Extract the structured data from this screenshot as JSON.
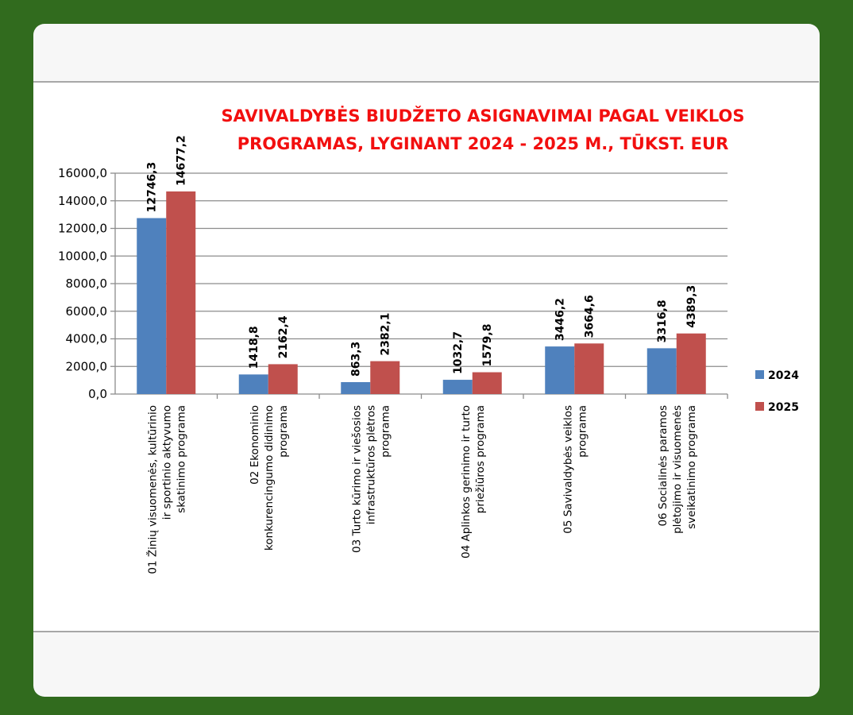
{
  "chart_data": {
    "type": "bar",
    "title_lines": [
      "SAVIVALDYBĖS BIUDŽETO ASIGNAVIMAI PAGAL VEIKLOS",
      "PROGRAMAS, LYGINANT 2024 - 2025 M., TŪKST. EUR"
    ],
    "categories": [
      [
        "01 Žinių visuomenės, kultūrinio",
        "ir sportinio aktyvumo",
        "skatinimo programa"
      ],
      [
        "02 Ekonominio",
        "konkurencingumo didinimo",
        "programa"
      ],
      [
        "03 Turto kūrimo ir viešosios",
        "infrastruktūros  plėtros",
        "programa"
      ],
      [
        "04 Aplinkos gerinimo ir turto",
        "priežiūros programa"
      ],
      [
        "05 Savivaldybės veiklos",
        "programa"
      ],
      [
        "06 Socialinės paramos",
        "plėtojimo ir visuomenės",
        "sveikatinimo programa"
      ]
    ],
    "series": [
      {
        "name": "2024",
        "color": "#4f81bd",
        "values": [
          12746.3,
          1418.8,
          863.3,
          1032.7,
          3446.2,
          3316.8
        ],
        "labels": [
          "12746,3",
          "1418,8",
          "863,3",
          "1032,7",
          "3446,2",
          "3316,8"
        ]
      },
      {
        "name": "2025",
        "color": "#c0504d",
        "values": [
          14677.2,
          2162.4,
          2382.1,
          1579.8,
          3664.6,
          4389.3
        ],
        "labels": [
          "14677,2",
          "2162,4",
          "2382,1",
          "1579,8",
          "3664,6",
          "4389,3"
        ]
      }
    ],
    "ylim": [
      0,
      16000
    ],
    "yticks": [
      0,
      2000,
      4000,
      6000,
      8000,
      10000,
      12000,
      14000,
      16000
    ],
    "ytick_labels": [
      "0,0",
      "2000,0",
      "4000,0",
      "6000,0",
      "8000,0",
      "10000,0",
      "12000,0",
      "14000,0",
      "16000,0"
    ],
    "grid": true,
    "legend_position": "right"
  }
}
